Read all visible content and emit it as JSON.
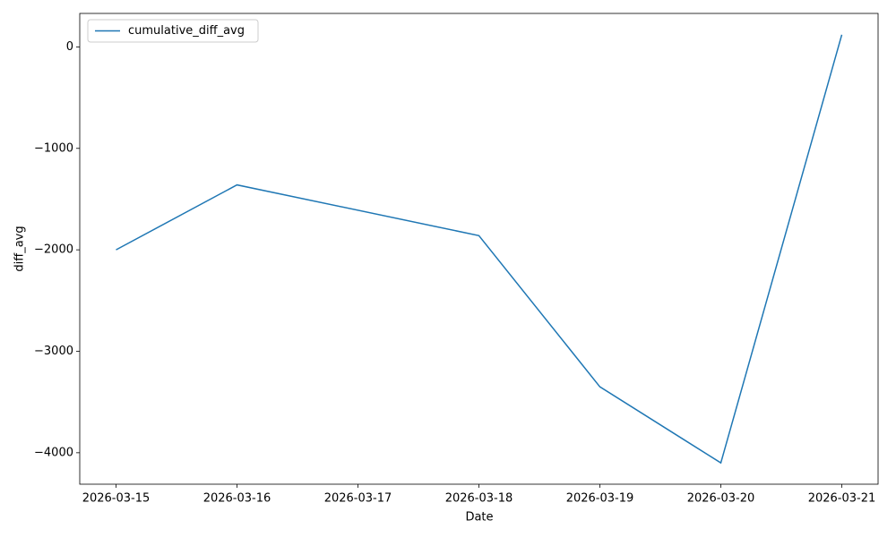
{
  "chart_data": {
    "type": "line",
    "x": [
      "2026-03-15",
      "2026-03-16",
      "2026-03-18",
      "2026-03-19",
      "2026-03-20",
      "2026-03-21"
    ],
    "series": [
      {
        "name": "cumulative_diff_avg",
        "color": "#1f77b4",
        "values": [
          -2000,
          -1360,
          -1860,
          -3350,
          -4100,
          120
        ]
      }
    ],
    "xlabel": "Date",
    "ylabel": "diff_avg",
    "xlim": [
      "2026-03-15",
      "2026-03-21"
    ],
    "xticks": [
      "2026-03-15",
      "2026-03-16",
      "2026-03-17",
      "2026-03-18",
      "2026-03-19",
      "2026-03-20",
      "2026-03-21"
    ],
    "ylim": [
      -4310,
      330
    ],
    "yticks": [
      {
        "value": -4000,
        "label": "−4000"
      },
      {
        "value": -3000,
        "label": "−3000"
      },
      {
        "value": -2000,
        "label": "−2000"
      },
      {
        "value": -1000,
        "label": "−1000"
      },
      0
    ],
    "legend": "upper left",
    "grid": false
  }
}
